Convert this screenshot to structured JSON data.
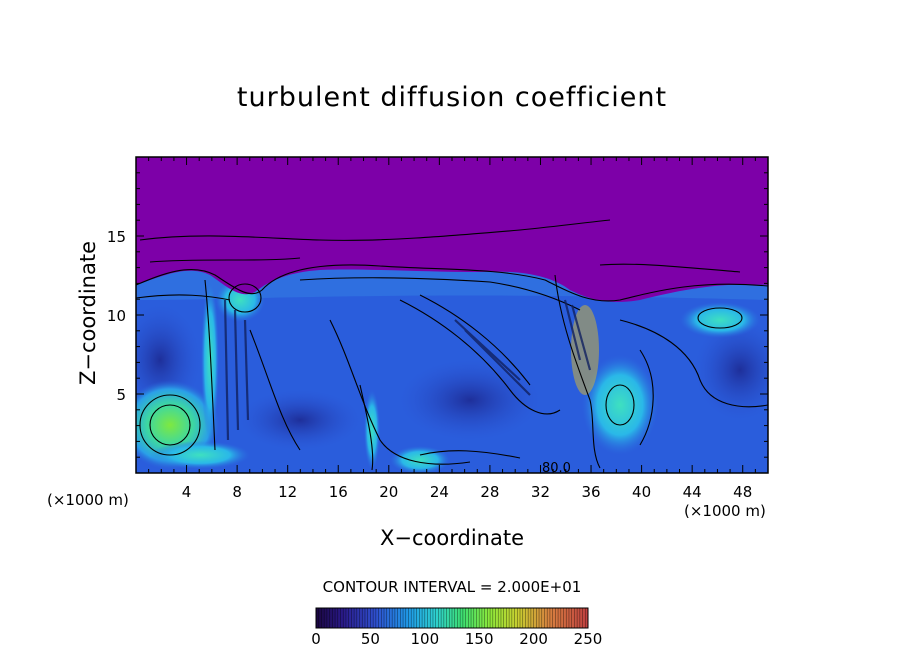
{
  "chart_data": {
    "type": "heatmap",
    "title": "turbulent diffusion coefficient",
    "xlabel": "X−coordinate",
    "ylabel": "Z−coordinate",
    "x_unit_label": "(×1000 m)",
    "x_ticks": [
      "4",
      "8",
      "12",
      "16",
      "20",
      "24",
      "28",
      "32",
      "36",
      "40",
      "44",
      "48"
    ],
    "y_ticks": [
      "5",
      "10",
      "15"
    ],
    "xlim": [
      0,
      50
    ],
    "ylim": [
      0,
      20
    ],
    "contour_interval_label": "CONTOUR INTERVAL = 2.000E+01",
    "contour_interval": 20,
    "contour_label": "80.0",
    "colorbar": {
      "ticks": [
        "0",
        "50",
        "100",
        "150",
        "200",
        "250"
      ],
      "range": [
        0,
        250
      ],
      "colors": [
        "#2a0a5e",
        "#2f2f9a",
        "#2e6ad6",
        "#1fa0e8",
        "#2ed0d0",
        "#3ee07a",
        "#8ee83a",
        "#c8d830",
        "#d89040",
        "#c84a3a"
      ]
    },
    "layers": {
      "upper_background": "#7d00a8",
      "mid_field": "#2f6fe0",
      "lower_field": "#2a55d8"
    }
  }
}
